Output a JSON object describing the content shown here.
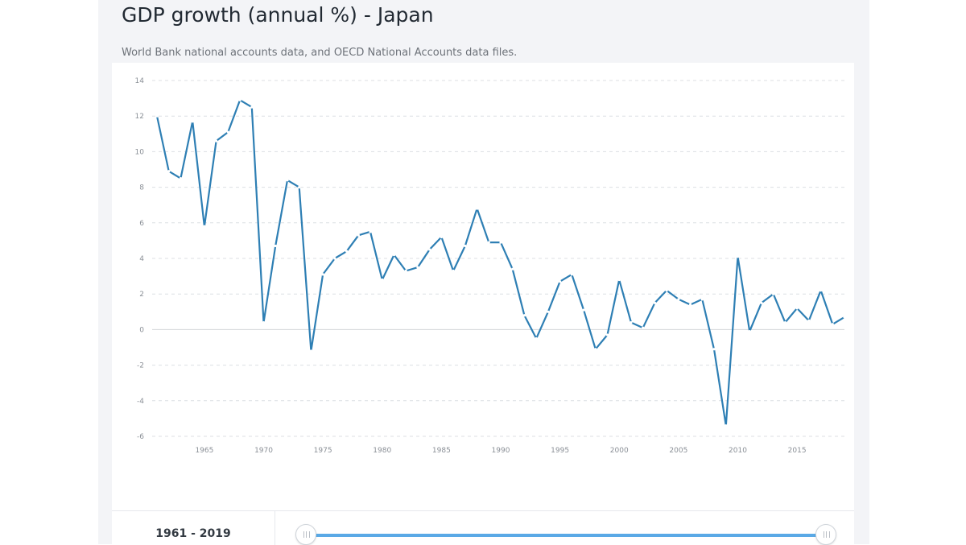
{
  "page": {
    "title": "GDP growth (annual %) - Japan",
    "subtitle": "World Bank national accounts data, and OECD National Accounts data files."
  },
  "range": {
    "label": "1961 - 2019",
    "start_year": 1961,
    "end_year": 2019
  },
  "colors": {
    "line": "#2e7fb4",
    "grid": "#dcdfe3",
    "slider": "#5aa9e6"
  },
  "chart_data": {
    "type": "line",
    "title": "GDP growth (annual %) - Japan",
    "xlabel": "",
    "ylabel": "",
    "xlim": [
      1961,
      2019
    ],
    "ylim": [
      -6,
      14
    ],
    "yticks": [
      14,
      12,
      10,
      8,
      6,
      4,
      2,
      0,
      -2,
      -4,
      -6
    ],
    "xticks": [
      1965,
      1970,
      1975,
      1980,
      1985,
      1990,
      1995,
      2000,
      2005,
      2010,
      2015
    ],
    "grid": true,
    "legend": "none",
    "series": [
      {
        "x": [
          1961,
          1962,
          1963,
          1964,
          1965,
          1966,
          1967,
          1968,
          1969,
          1970,
          1971,
          1972,
          1973,
          1974,
          1975,
          1976,
          1977,
          1978,
          1979,
          1980,
          1981,
          1982,
          1983,
          1984,
          1985,
          1986,
          1987,
          1988,
          1989,
          1990,
          1991,
          1992,
          1993,
          1994,
          1995,
          1996,
          1997,
          1998,
          1999,
          2000,
          2001,
          2002,
          2003,
          2004,
          2005,
          2006,
          2007,
          2008,
          2009,
          2010,
          2011,
          2012,
          2013,
          2014,
          2015,
          2016,
          2017,
          2018,
          2019
        ],
        "values": [
          12.0,
          8.9,
          8.5,
          11.7,
          5.8,
          10.6,
          11.1,
          12.9,
          12.5,
          0.4,
          4.7,
          8.4,
          8.0,
          -1.2,
          3.1,
          4.0,
          4.4,
          5.3,
          5.5,
          2.8,
          4.2,
          3.3,
          3.5,
          4.5,
          5.2,
          3.3,
          4.7,
          6.8,
          4.9,
          4.9,
          3.4,
          0.8,
          -0.5,
          1.0,
          2.7,
          3.1,
          1.1,
          -1.1,
          -0.3,
          2.8,
          0.4,
          0.1,
          1.5,
          2.2,
          1.7,
          1.4,
          1.7,
          -1.1,
          -5.4,
          4.1,
          -0.1,
          1.5,
          2.0,
          0.4,
          1.2,
          0.5,
          2.2,
          0.3,
          0.7
        ]
      }
    ]
  }
}
